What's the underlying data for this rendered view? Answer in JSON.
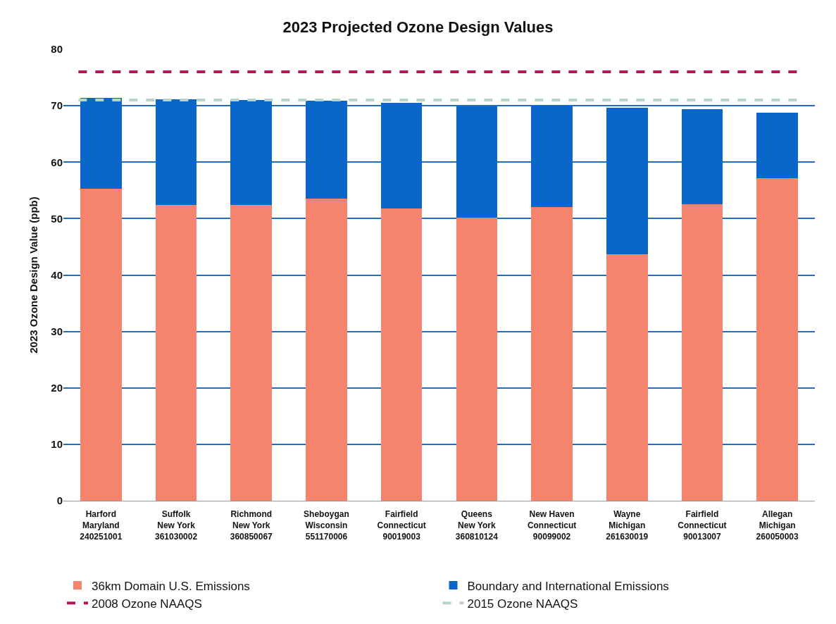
{
  "chart_data": {
    "type": "bar",
    "title": "2023 Projected Ozone Design Values",
    "ylabel": "2023 Ozone Design Value (ppb)",
    "categories": [
      "Harford\nMaryland\n240251001",
      "Suffolk\nNew York\n361030002",
      "Richmond\nNew York\n360850067",
      "Sheboygan\nWisconsin\n551170006",
      "Fairfield\nConnecticut\n90019003",
      "Queens\nNew York\n360810124",
      "New Haven\nConnecticut\n90099002",
      "Wayne\nMichigan\n261630019",
      "Fairfield\nConnecticut\n90013007",
      "Allegan\nMichigan\n260050003"
    ],
    "stacked": true,
    "series": [
      {
        "name": "36km Domain U.S. Emissions",
        "color": "#f4846e",
        "values": [
          55.3,
          52.4,
          52.4,
          53.5,
          51.8,
          50.2,
          52.0,
          43.7,
          52.5,
          57.2
        ]
      },
      {
        "name": "Boundary and International Emissions",
        "color": "#0a66c8",
        "values": [
          16.1,
          18.8,
          18.6,
          17.4,
          18.7,
          19.7,
          18.0,
          25.9,
          16.9,
          11.6
        ]
      }
    ],
    "ref_lines": [
      {
        "axis": "y",
        "value": 76,
        "label": "2008 Ozone NAAQS",
        "color": "#b0185a",
        "line_style": "dashed"
      },
      {
        "axis": "y",
        "value": 71,
        "label": "2015 Ozone NAAQS",
        "color": "#b7d3cf",
        "line_style": "dashed"
      }
    ],
    "ylim": [
      0,
      80
    ],
    "yticks": [
      0,
      10,
      20,
      30,
      40,
      50,
      60,
      70,
      80
    ],
    "grid": "y",
    "legend": "bottom"
  }
}
